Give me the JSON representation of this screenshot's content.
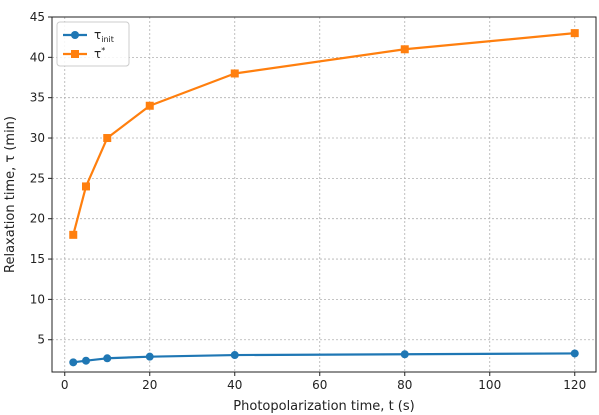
{
  "chart_data": {
    "type": "line",
    "xlabel": "Photopolarization time, t (s)",
    "ylabel": "Relaxation time, τ (min)",
    "xlim": [
      -3,
      125
    ],
    "ylim": [
      1,
      45
    ],
    "x_ticks": [
      0,
      20,
      40,
      60,
      80,
      100,
      120
    ],
    "y_ticks": [
      5,
      10,
      15,
      20,
      25,
      30,
      35,
      40,
      45
    ],
    "grid": true,
    "legend_position": "top-left",
    "x": [
      2,
      5,
      10,
      20,
      40,
      80,
      120
    ],
    "series": [
      {
        "name": "τinit",
        "legend_main": "τ",
        "legend_sub": "init",
        "color": "#1f77b4",
        "marker": "circle",
        "values": [
          2.2,
          2.4,
          2.7,
          2.9,
          3.1,
          3.2,
          3.3
        ]
      },
      {
        "name": "τ*",
        "legend_main": "τ",
        "legend_sup": "*",
        "color": "#ff7f0e",
        "marker": "square",
        "values": [
          18,
          24,
          30,
          34,
          38,
          41,
          43
        ]
      }
    ]
  }
}
